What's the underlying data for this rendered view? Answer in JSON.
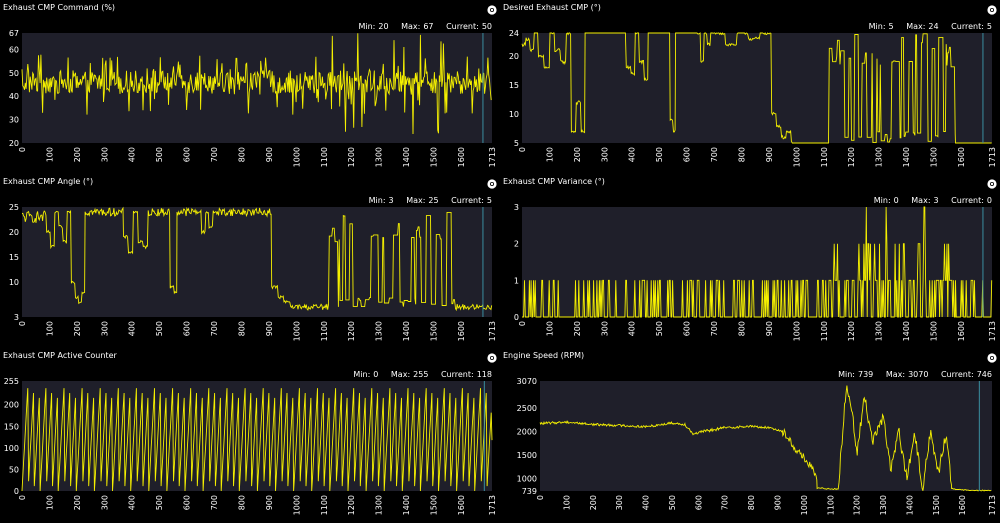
{
  "colors": {
    "trace": "#f5f000",
    "plot_bg": "#1f1f2a",
    "cursor": "#3a8fa0",
    "text": "#ffffff",
    "background": "#000000"
  },
  "labels": {
    "min": "Min:",
    "max": "Max:",
    "current": "Current:"
  },
  "panels": [
    {
      "title": "Exhaust CMP Command (%)",
      "min": "20",
      "max": "67",
      "current": "50",
      "settings_icon": "settings-gear-icon",
      "chart_data": {
        "type": "line",
        "title": "Exhaust CMP Command (%)",
        "ylim": [
          20,
          67
        ],
        "yticks": [
          20,
          30,
          40,
          50,
          60,
          67
        ],
        "xlim": [
          0,
          1713
        ],
        "xticks": [
          0,
          100,
          200,
          300,
          400,
          500,
          600,
          700,
          800,
          900,
          1000,
          1100,
          1200,
          1300,
          1400,
          1500,
          1600,
          1713
        ],
        "cursor_x": 1680,
        "segments": [
          {
            "x0": 0,
            "x1": 1713,
            "base": 46,
            "style": "noise",
            "amp": 5,
            "spikes": 0.22,
            "spike_lo": 32,
            "spike_hi": 58,
            "extreme_lo": 20,
            "extreme_hi": 67,
            "extreme_range": [
              1130,
              1560
            ]
          }
        ]
      }
    },
    {
      "title": "Desired Exhaust CMP (°)",
      "min": "5",
      "max": "24",
      "current": "5",
      "settings_icon": "settings-gear-icon",
      "chart_data": {
        "type": "line",
        "title": "Desired Exhaust CMP (°)",
        "ylim": [
          5,
          24
        ],
        "yticks": [
          5,
          10,
          15,
          20,
          24
        ],
        "xlim": [
          0,
          1713
        ],
        "xticks": [
          0,
          100,
          200,
          300,
          400,
          500,
          600,
          700,
          800,
          900,
          1000,
          1100,
          1200,
          1300,
          1400,
          1500,
          1600,
          1713
        ],
        "cursor_x": 1680,
        "segments": [
          {
            "x0": 0,
            "x1": 60,
            "base": 22,
            "style": "steps",
            "levels": [
              22,
              23,
              21,
              24
            ]
          },
          {
            "x0": 60,
            "x1": 180,
            "base": 20,
            "style": "steps",
            "levels": [
              20,
              18,
              24,
              21,
              19,
              24
            ]
          },
          {
            "x0": 180,
            "x1": 230,
            "base": 7,
            "style": "steps",
            "levels": [
              7,
              12,
              7
            ]
          },
          {
            "x0": 230,
            "x1": 380,
            "base": 24,
            "style": "flat"
          },
          {
            "x0": 380,
            "x1": 460,
            "base": 18,
            "style": "steps",
            "levels": [
              18,
              17,
              24,
              19,
              16
            ]
          },
          {
            "x0": 460,
            "x1": 540,
            "base": 24,
            "style": "flat"
          },
          {
            "x0": 540,
            "x1": 560,
            "base": 7,
            "style": "steps",
            "levels": [
              9,
              7
            ]
          },
          {
            "x0": 560,
            "x1": 640,
            "base": 24,
            "style": "flat"
          },
          {
            "x0": 640,
            "x1": 700,
            "base": 22,
            "style": "steps",
            "levels": [
              24,
              19,
              24,
              22,
              24
            ]
          },
          {
            "x0": 700,
            "x1": 910,
            "base": 24,
            "style": "steps",
            "levels": [
              24,
              22,
              24,
              23,
              24
            ]
          },
          {
            "x0": 910,
            "x1": 1000,
            "base": 7,
            "style": "steps",
            "levels": [
              10,
              8,
              6,
              7,
              5
            ]
          },
          {
            "x0": 1000,
            "x1": 1120,
            "base": 5,
            "style": "flat"
          },
          {
            "x0": 1120,
            "x1": 1580,
            "base": 14,
            "style": "toggle",
            "lo": 5,
            "hi": 24,
            "rate": 0.35
          },
          {
            "x0": 1580,
            "x1": 1713,
            "base": 5,
            "style": "flat"
          }
        ]
      }
    },
    {
      "title": "Exhaust CMP Angle (°)",
      "min": "3",
      "max": "25",
      "current": "5",
      "settings_icon": "settings-gear-icon",
      "chart_data": {
        "type": "line",
        "title": "Exhaust CMP Angle (°)",
        "ylim": [
          3,
          25
        ],
        "yticks": [
          3,
          10,
          15,
          20,
          25
        ],
        "xlim": [
          0,
          1713
        ],
        "xticks": [
          0,
          100,
          200,
          300,
          400,
          500,
          600,
          700,
          800,
          900,
          1000,
          1100,
          1200,
          1300,
          1400,
          1500,
          1600,
          1713
        ],
        "cursor_x": 1680,
        "segments": [
          {
            "x0": 0,
            "x1": 90,
            "base": 23,
            "style": "jitter",
            "amp": 1.2
          },
          {
            "x0": 90,
            "x1": 180,
            "base": 20,
            "style": "steps",
            "levels": [
              20,
              17,
              24,
              21,
              18,
              24
            ]
          },
          {
            "x0": 180,
            "x1": 230,
            "base": 7,
            "style": "steps",
            "levels": [
              10,
              7,
              6,
              8
            ]
          },
          {
            "x0": 230,
            "x1": 370,
            "base": 24,
            "style": "jitter",
            "amp": 0.8
          },
          {
            "x0": 370,
            "x1": 460,
            "base": 18,
            "style": "steps",
            "levels": [
              19,
              16,
              24,
              18,
              17
            ]
          },
          {
            "x0": 460,
            "x1": 540,
            "base": 24,
            "style": "jitter",
            "amp": 0.8
          },
          {
            "x0": 540,
            "x1": 565,
            "base": 8,
            "style": "steps",
            "levels": [
              9,
              8
            ]
          },
          {
            "x0": 565,
            "x1": 640,
            "base": 24,
            "style": "jitter",
            "amp": 0.8
          },
          {
            "x0": 640,
            "x1": 710,
            "base": 21,
            "style": "steps",
            "levels": [
              24,
              20,
              24,
              21,
              24
            ]
          },
          {
            "x0": 710,
            "x1": 910,
            "base": 24,
            "style": "jitter",
            "amp": 0.8
          },
          {
            "x0": 910,
            "x1": 1000,
            "base": 6,
            "style": "steps",
            "levels": [
              9,
              7,
              6,
              5
            ]
          },
          {
            "x0": 1000,
            "x1": 1120,
            "base": 5,
            "style": "jitter",
            "amp": 0.6
          },
          {
            "x0": 1120,
            "x1": 1580,
            "base": 14,
            "style": "toggle",
            "lo": 5,
            "hi": 24,
            "rate": 0.35
          },
          {
            "x0": 1580,
            "x1": 1713,
            "base": 5,
            "style": "jitter",
            "amp": 0.6
          }
        ]
      }
    },
    {
      "title": "Exhaust CMP Variance (°)",
      "min": "0",
      "max": "3",
      "current": "0",
      "settings_icon": "settings-gear-icon",
      "chart_data": {
        "type": "line",
        "title": "Exhaust CMP Variance (°)",
        "ylim": [
          0,
          3
        ],
        "yticks": [
          0,
          1,
          2,
          3
        ],
        "xlim": [
          0,
          1713
        ],
        "xticks": [
          0,
          100,
          200,
          300,
          400,
          500,
          600,
          700,
          800,
          900,
          1000,
          1100,
          1200,
          1300,
          1400,
          1500,
          1600,
          1713
        ],
        "cursor_x": 1680,
        "segments": [
          {
            "x0": 0,
            "x1": 1120,
            "base": 0,
            "style": "binary",
            "lo": 0,
            "hi": 1,
            "rate": 0.28
          },
          {
            "x0": 1120,
            "x1": 1580,
            "base": 0,
            "style": "binary3",
            "lo": 0,
            "hi": 1,
            "rate": 0.5,
            "p2": 0.12,
            "p3": 0.04
          },
          {
            "x0": 1580,
            "x1": 1713,
            "base": 0,
            "style": "binary",
            "lo": 0,
            "hi": 1,
            "rate": 0.25
          }
        ]
      }
    },
    {
      "title": "Exhaust CMP Active Counter",
      "min": "0",
      "max": "255",
      "current": "118",
      "settings_icon": "settings-gear-icon",
      "chart_data": {
        "type": "line",
        "title": "Exhaust CMP Active Counter",
        "ylim": [
          0,
          255
        ],
        "yticks": [
          0,
          50,
          100,
          150,
          200,
          255
        ],
        "xlim": [
          0,
          1713
        ],
        "xticks": [
          0,
          100,
          200,
          300,
          400,
          500,
          600,
          700,
          800,
          900,
          1000,
          1100,
          1200,
          1300,
          1400,
          1500,
          1600,
          1713
        ],
        "cursor_x": 1685,
        "segments": [
          {
            "x0": 0,
            "x1": 1713,
            "base": 0,
            "style": "sawtooth",
            "period": 22,
            "lo": 0,
            "hi": 250,
            "end": 118
          }
        ]
      }
    },
    {
      "title": "Engine Speed (RPM)",
      "min": "739",
      "max": "3070",
      "current": "746",
      "settings_icon": "settings-gear-icon",
      "chart_data": {
        "type": "line",
        "title": "Engine Speed (RPM)",
        "ylim": [
          739,
          3070
        ],
        "yticks": [
          739,
          1000,
          1500,
          2000,
          2500,
          3070
        ],
        "xlim": [
          0,
          1713
        ],
        "xticks": [
          0,
          100,
          200,
          300,
          400,
          500,
          600,
          700,
          800,
          900,
          1000,
          1100,
          1200,
          1300,
          1400,
          1500,
          1600,
          1713
        ],
        "cursor_x": 1665,
        "segments": [
          {
            "x0": 0,
            "x1": 550,
            "base": 2150,
            "style": "drift",
            "points": [
              [
                0,
                2170
              ],
              [
                100,
                2200
              ],
              [
                200,
                2150
              ],
              [
                300,
                2130
              ],
              [
                400,
                2100
              ],
              [
                500,
                2180
              ],
              [
                550,
                2150
              ]
            ],
            "amp": 25
          },
          {
            "x0": 550,
            "x1": 700,
            "base": 2050,
            "style": "drift",
            "points": [
              [
                550,
                2150
              ],
              [
                580,
                1950
              ],
              [
                620,
                2000
              ],
              [
                700,
                2080
              ]
            ],
            "amp": 30
          },
          {
            "x0": 700,
            "x1": 920,
            "base": 2080,
            "style": "drift",
            "points": [
              [
                700,
                2080
              ],
              [
                800,
                2110
              ],
              [
                880,
                2070
              ],
              [
                920,
                2000
              ]
            ],
            "amp": 25
          },
          {
            "x0": 920,
            "x1": 1050,
            "base": 1500,
            "style": "drift",
            "points": [
              [
                920,
                2000
              ],
              [
                960,
                1700
              ],
              [
                990,
                1500
              ],
              [
                1020,
                1300
              ],
              [
                1050,
                1000
              ]
            ],
            "amp": 90
          },
          {
            "x0": 1050,
            "x1": 1130,
            "base": 780,
            "style": "drift",
            "points": [
              [
                1050,
                800
              ],
              [
                1130,
                780
              ]
            ],
            "amp": 15
          },
          {
            "x0": 1130,
            "x1": 1560,
            "base": 1800,
            "style": "bursts",
            "points": [
              [
                1130,
                800
              ],
              [
                1160,
                2900
              ],
              [
                1180,
                2600
              ],
              [
                1200,
                1500
              ],
              [
                1230,
                2750
              ],
              [
                1260,
                1800
              ],
              [
                1300,
                2300
              ],
              [
                1330,
                1200
              ],
              [
                1360,
                2000
              ],
              [
                1390,
                1000
              ],
              [
                1420,
                1950
              ],
              [
                1450,
                800
              ],
              [
                1480,
                2000
              ],
              [
                1510,
                1100
              ],
              [
                1540,
                2000
              ],
              [
                1560,
                800
              ]
            ],
            "amp": 120
          },
          {
            "x0": 1560,
            "x1": 1713,
            "base": 760,
            "style": "drift",
            "points": [
              [
                1560,
                790
              ],
              [
                1600,
                760
              ],
              [
                1713,
                745
              ]
            ],
            "amp": 10
          }
        ]
      }
    }
  ]
}
